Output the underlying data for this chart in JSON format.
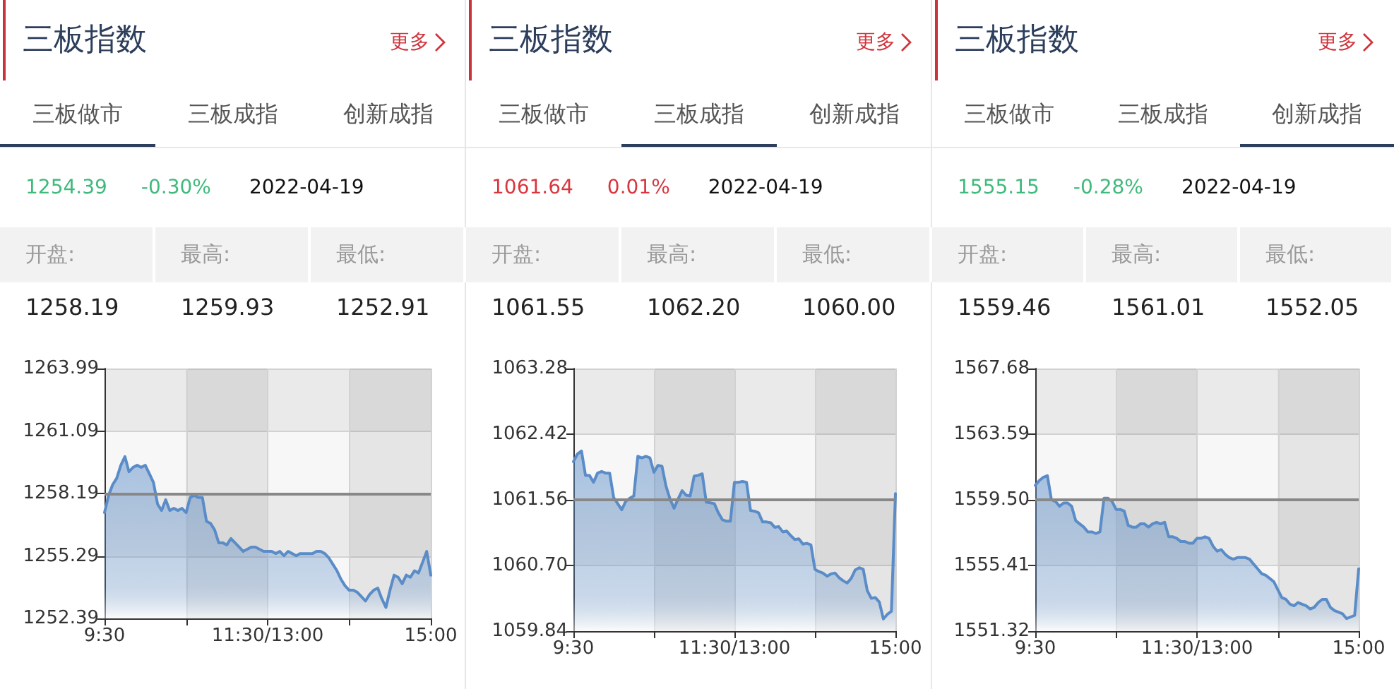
{
  "chart_data": [
    {
      "type": "area",
      "title": "三板指数",
      "annotations": [
        "更多",
        "三板做市",
        "三板成指",
        "创新成指",
        "1254.39",
        "-0.30%",
        "2022-04-19",
        "开盘:",
        "最高:",
        "最低:",
        "1258.19",
        "1259.93",
        "1252.91"
      ],
      "categories": [
        "9:30",
        null,
        null,
        null,
        null,
        null,
        null,
        null,
        null,
        null,
        null,
        null,
        null,
        null,
        null,
        null,
        null,
        null,
        null,
        null,
        null,
        null,
        null,
        null,
        null,
        null,
        null,
        null,
        null,
        null,
        null,
        null,
        null,
        null,
        null,
        null,
        null,
        null,
        null,
        null,
        "11:30/13:00",
        null,
        null,
        null,
        null,
        null,
        null,
        null,
        null,
        null,
        null,
        null,
        null,
        null,
        null,
        null,
        null,
        null,
        null,
        null,
        null,
        null,
        null,
        null,
        null,
        null,
        null,
        null,
        null,
        null,
        null,
        null,
        null,
        null,
        null,
        null,
        null,
        null,
        null,
        null,
        "15:00"
      ],
      "series": [
        {
          "color": "#5a8cc8",
          "values": [
            1257.3,
            1258.1,
            1258.6,
            1258.9,
            1259.5,
            1259.9,
            1259.2,
            1259.4,
            1259.5,
            1259.4,
            1259.5,
            1259.1,
            1258.7,
            1257.7,
            1257.4,
            1257.9,
            1257.4,
            1257.5,
            1257.4,
            1257.5,
            1257.3,
            1258.0,
            1258.1,
            1258.0,
            1258.0,
            1256.9,
            1256.8,
            1256.5,
            1255.9,
            1255.9,
            1255.8,
            1256.1,
            1255.9,
            1255.7,
            1255.5,
            1255.6,
            1255.7,
            1255.7,
            1255.6,
            1255.5,
            1255.5,
            1255.5,
            1255.4,
            1255.5,
            1255.3,
            1255.5,
            1255.4,
            1255.3,
            1255.4,
            1255.4,
            1255.4,
            1255.4,
            1255.5,
            1255.5,
            1255.4,
            1255.2,
            1254.9,
            1254.6,
            1254.2,
            1253.9,
            1253.7,
            1253.7,
            1253.6,
            1253.4,
            1253.2,
            1253.5,
            1253.7,
            1253.8,
            1253.3,
            1252.9,
            1253.7,
            1254.4,
            1254.3,
            1254.0,
            1254.4,
            1254.3,
            1254.6,
            1254.5,
            1255.0,
            1255.5,
            1254.4
          ]
        }
      ],
      "ylim": [
        1252.39,
        1263.99
      ],
      "yticks": [
        1252.39,
        1255.29,
        1258.19,
        1261.09,
        1263.99
      ],
      "ref_lines": [
        {
          "axis": "y",
          "value": 1258.19,
          "color": "#888888"
        }
      ],
      "grid": true,
      "marker": "none"
    },
    {
      "type": "area",
      "title": "三板指数",
      "annotations": [
        "更多",
        "三板做市",
        "三板成指",
        "创新成指",
        "1061.64",
        "0.01%",
        "2022-04-19",
        "开盘:",
        "最高:",
        "最低:",
        "1061.55",
        "1062.20",
        "1060.00"
      ],
      "categories": [
        "9:30",
        null,
        null,
        null,
        null,
        null,
        null,
        null,
        null,
        null,
        null,
        null,
        null,
        null,
        null,
        null,
        null,
        null,
        null,
        null,
        null,
        null,
        null,
        null,
        null,
        null,
        null,
        null,
        null,
        null,
        null,
        null,
        null,
        null,
        null,
        null,
        null,
        null,
        null,
        null,
        "11:30/13:00",
        null,
        null,
        null,
        null,
        null,
        null,
        null,
        null,
        null,
        null,
        null,
        null,
        null,
        null,
        null,
        null,
        null,
        null,
        null,
        null,
        null,
        null,
        null,
        null,
        null,
        null,
        null,
        null,
        null,
        null,
        null,
        null,
        null,
        null,
        null,
        null,
        null,
        null,
        null,
        "15:00"
      ],
      "series": [
        {
          "color": "#5a8cc8",
          "values": [
            1062.06,
            1062.16,
            1062.2,
            1061.88,
            1061.88,
            1061.79,
            1061.91,
            1061.93,
            1061.91,
            1061.91,
            1061.59,
            1061.51,
            1061.43,
            1061.54,
            1061.58,
            1061.61,
            1062.13,
            1062.11,
            1062.13,
            1062.11,
            1061.92,
            1062.01,
            1062.0,
            1061.74,
            1061.57,
            1061.45,
            1061.57,
            1061.68,
            1061.62,
            1061.61,
            1061.87,
            1061.88,
            1061.9,
            1061.53,
            1061.52,
            1061.51,
            1061.39,
            1061.3,
            1061.28,
            1061.28,
            1061.79,
            1061.79,
            1061.8,
            1061.79,
            1061.42,
            1061.41,
            1061.39,
            1061.27,
            1061.27,
            1061.26,
            1061.2,
            1061.21,
            1061.14,
            1061.15,
            1061.09,
            1061.04,
            1061.05,
            1060.98,
            1060.99,
            1060.97,
            1060.65,
            1060.62,
            1060.6,
            1060.56,
            1060.59,
            1060.6,
            1060.54,
            1060.5,
            1060.47,
            1060.53,
            1060.64,
            1060.67,
            1060.65,
            1060.37,
            1060.27,
            1060.28,
            1060.22,
            1060.0,
            1060.06,
            1060.1,
            1061.64
          ]
        }
      ],
      "ylim": [
        1059.84,
        1063.28
      ],
      "yticks": [
        1059.84,
        {
          "value": 1060.7,
          "label": "1060.70"
        },
        1061.56,
        1062.42,
        1063.28
      ],
      "ref_lines": [
        {
          "axis": "y",
          "value": 1061.56,
          "color": "#888888"
        }
      ],
      "grid": true,
      "marker": "none"
    },
    {
      "type": "area",
      "title": "三板指数",
      "annotations": [
        "更多",
        "三板做市",
        "三板成指",
        "创新成指",
        "1555.15",
        "-0.28%",
        "2022-04-19",
        "开盘:",
        "最高:",
        "最低:",
        "1559.46",
        "1561.01",
        "1552.05"
      ],
      "categories": [
        "9:30",
        null,
        null,
        null,
        null,
        null,
        null,
        null,
        null,
        null,
        null,
        null,
        null,
        null,
        null,
        null,
        null,
        null,
        null,
        null,
        null,
        null,
        null,
        null,
        null,
        null,
        null,
        null,
        null,
        null,
        null,
        null,
        null,
        null,
        null,
        null,
        null,
        null,
        null,
        null,
        "11:30/13:00",
        null,
        null,
        null,
        null,
        null,
        null,
        null,
        null,
        null,
        null,
        null,
        null,
        null,
        null,
        null,
        null,
        null,
        null,
        null,
        null,
        null,
        null,
        null,
        null,
        null,
        null,
        null,
        null,
        null,
        null,
        null,
        null,
        null,
        null,
        null,
        null,
        null,
        null,
        null,
        "15:00"
      ],
      "series": [
        {
          "color": "#5a8cc8",
          "values": [
            1560.4,
            1560.7,
            1560.9,
            1561.0,
            1559.5,
            1559.4,
            1559.1,
            1559.3,
            1559.3,
            1559.1,
            1558.2,
            1558.0,
            1557.8,
            1557.5,
            1557.5,
            1557.4,
            1557.5,
            1559.6,
            1559.6,
            1559.4,
            1558.9,
            1558.9,
            1558.8,
            1557.9,
            1557.8,
            1557.8,
            1558.0,
            1558.0,
            1557.8,
            1558.0,
            1558.1,
            1558.0,
            1558.1,
            1557.2,
            1557.2,
            1557.1,
            1556.9,
            1556.9,
            1556.8,
            1556.8,
            1557.1,
            1557.1,
            1557.2,
            1557.1,
            1556.6,
            1556.3,
            1556.4,
            1556.1,
            1555.9,
            1555.8,
            1555.9,
            1555.9,
            1555.9,
            1555.8,
            1555.5,
            1555.2,
            1554.9,
            1554.8,
            1554.6,
            1554.4,
            1553.9,
            1553.4,
            1553.3,
            1553.0,
            1552.9,
            1553.1,
            1553.0,
            1552.9,
            1552.7,
            1552.8,
            1553.1,
            1553.3,
            1553.3,
            1552.8,
            1552.6,
            1552.5,
            1552.4,
            1552.1,
            1552.2,
            1552.3,
            1555.2
          ]
        }
      ],
      "ylim": [
        1551.32,
        1567.68
      ],
      "yticks": [
        1551.32,
        1555.41,
        {
          "value": 1559.5,
          "label": "1559.50"
        },
        1563.59,
        1567.68
      ],
      "ref_lines": [
        {
          "axis": "y",
          "value": 1559.5,
          "color": "#888888"
        }
      ],
      "grid": true,
      "marker": "none"
    }
  ]
}
